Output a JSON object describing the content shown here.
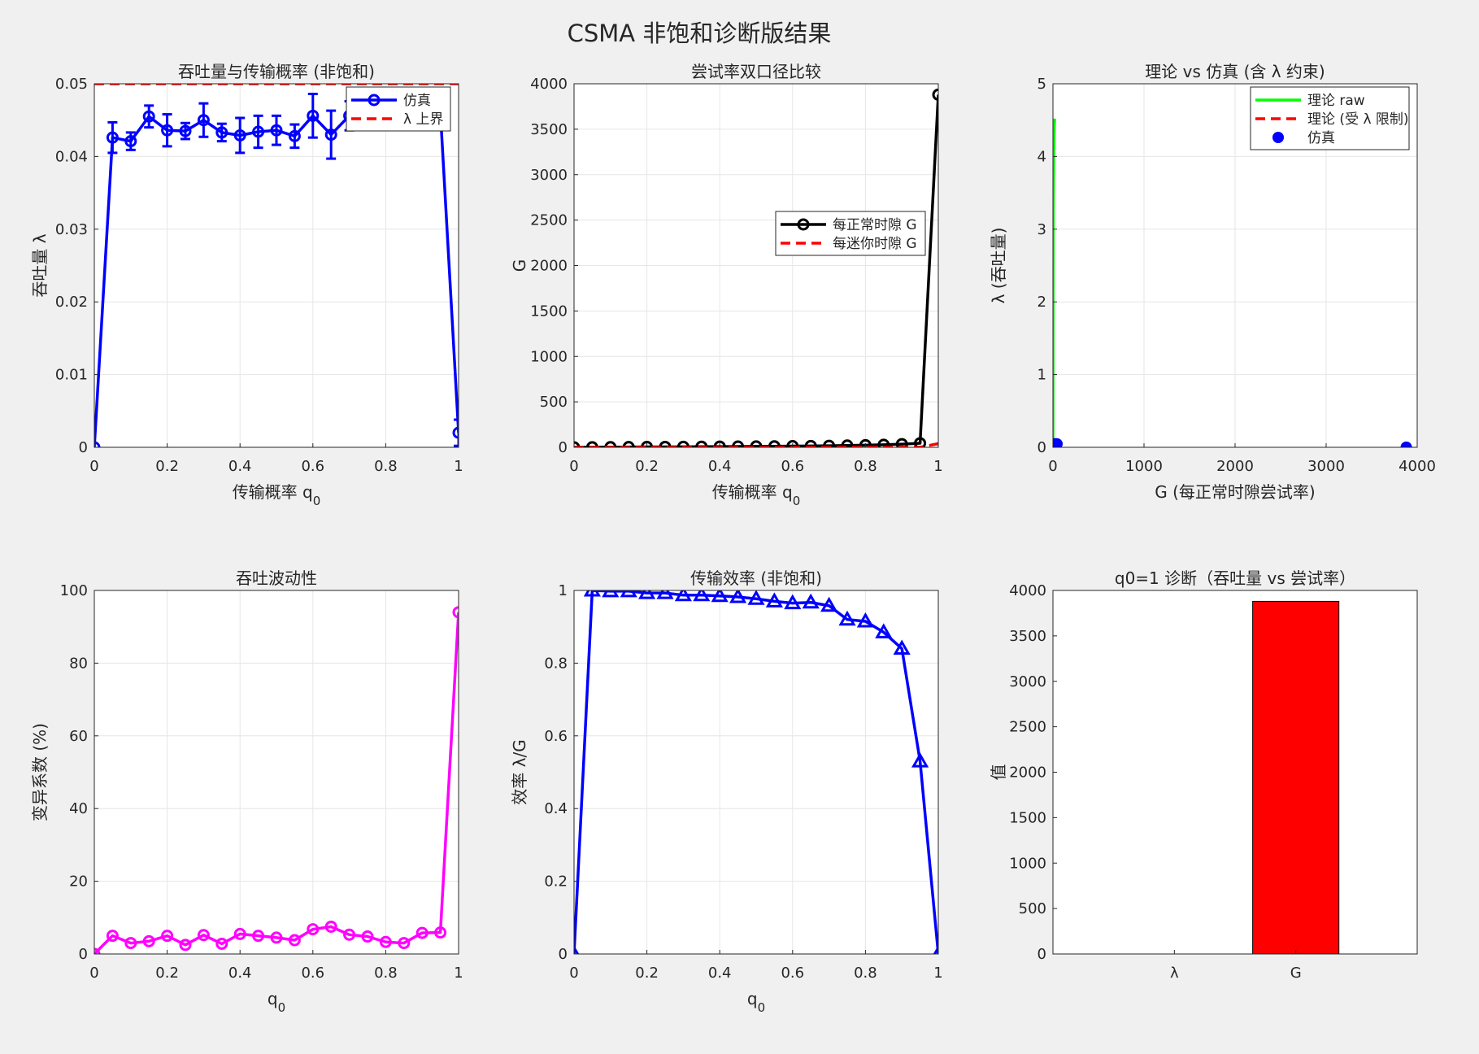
{
  "figure": {
    "title": "CSMA 非饱和诊断版结果",
    "background": "#f0f0f0",
    "axes_color": "#262626",
    "grid_color": "#e6e6e6"
  },
  "chart_data": [
    {
      "id": "throughput",
      "type": "line",
      "title": "吞吐量与传输概率 (非饱和)",
      "xlabel": "传输概率 q",
      "xlabel_sub": "0",
      "ylabel": "吞吐量 λ",
      "xlim": [
        0,
        1
      ],
      "ylim": [
        0,
        0.05
      ],
      "xticks": [
        0,
        0.2,
        0.4,
        0.6,
        0.8,
        1
      ],
      "xtick_labels": [
        "0",
        "0.2",
        "0.4",
        "0.6",
        "0.8",
        "1"
      ],
      "yticks": [
        0,
        0.01,
        0.02,
        0.03,
        0.04,
        0.05
      ],
      "ytick_labels": [
        "0",
        "0.01",
        "0.02",
        "0.03",
        "0.04",
        "0.05"
      ],
      "grid": true,
      "legend": "top-right",
      "series": [
        {
          "name": "仿真",
          "color": "#0000ff",
          "marker": "circle",
          "errorbars": true,
          "x": [
            0,
            0.05,
            0.1,
            0.15,
            0.2,
            0.25,
            0.3,
            0.35,
            0.4,
            0.45,
            0.5,
            0.55,
            0.6,
            0.65,
            0.7,
            0.75,
            0.8,
            0.85,
            0.9,
            0.95,
            1
          ],
          "y": [
            0,
            0.0426,
            0.0421,
            0.0455,
            0.0436,
            0.0435,
            0.045,
            0.0433,
            0.0429,
            0.0434,
            0.0436,
            0.0428,
            0.0456,
            0.043,
            0.0456,
            0.046,
            0.0462,
            0.0465,
            0.0466,
            0.0462,
            0.002
          ],
          "err": [
            0,
            0.0021,
            0.0012,
            0.0015,
            0.0022,
            0.0011,
            0.0023,
            0.0012,
            0.0024,
            0.0022,
            0.002,
            0.0016,
            0.003,
            0.0033,
            0.002,
            0.002,
            0.002,
            0.002,
            0.002,
            0.002,
            0.0018
          ]
        },
        {
          "name": "λ 上界",
          "color": "#ff0000",
          "dashed": true,
          "x": [
            0,
            1
          ],
          "y": [
            0.05,
            0.05
          ]
        }
      ]
    },
    {
      "id": "attempt-rate",
      "type": "line",
      "title": "尝试率双口径比较",
      "xlabel": "传输概率 q",
      "xlabel_sub": "0",
      "ylabel": "G",
      "xlim": [
        0,
        1
      ],
      "ylim": [
        0,
        4000
      ],
      "xticks": [
        0,
        0.2,
        0.4,
        0.6,
        0.8,
        1
      ],
      "xtick_labels": [
        "0",
        "0.2",
        "0.4",
        "0.6",
        "0.8",
        "1"
      ],
      "yticks": [
        0,
        500,
        1000,
        1500,
        2000,
        2500,
        3000,
        3500,
        4000
      ],
      "ytick_labels": [
        "0",
        "500",
        "1000",
        "1500",
        "2000",
        "2500",
        "3000",
        "3500",
        "4000"
      ],
      "grid": true,
      "legend": "center-right",
      "series": [
        {
          "name": "每正常时隙 G",
          "color": "#000000",
          "marker": "circle",
          "x": [
            0,
            0.05,
            0.1,
            0.15,
            0.2,
            0.25,
            0.3,
            0.35,
            0.4,
            0.45,
            0.5,
            0.55,
            0.6,
            0.65,
            0.7,
            0.75,
            0.8,
            0.85,
            0.9,
            0.95,
            1
          ],
          "y": [
            0,
            1,
            2,
            3,
            4,
            5,
            6,
            7,
            8,
            9,
            10,
            11,
            13,
            15,
            17,
            20,
            24,
            28,
            35,
            45,
            3880
          ]
        },
        {
          "name": "每迷你时隙 G",
          "color": "#ff0000",
          "dashed": true,
          "x": [
            0,
            0.05,
            0.1,
            0.15,
            0.2,
            0.25,
            0.3,
            0.35,
            0.4,
            0.45,
            0.5,
            0.55,
            0.6,
            0.65,
            0.7,
            0.75,
            0.8,
            0.85,
            0.9,
            0.95,
            1
          ],
          "y": [
            0,
            0.05,
            0.1,
            0.15,
            0.2,
            0.25,
            0.3,
            0.35,
            0.4,
            0.45,
            0.5,
            0.55,
            0.6,
            0.65,
            0.7,
            0.75,
            0.8,
            0.85,
            0.9,
            0.95,
            40
          ]
        }
      ]
    },
    {
      "id": "theory-vs-sim",
      "type": "line",
      "title": "理论 vs 仿真 (含 λ 约束)",
      "xlabel": "G (每正常时隙尝试率)",
      "ylabel": "λ (吞吐量)",
      "xlim": [
        0,
        4000
      ],
      "ylim": [
        0,
        5
      ],
      "xticks": [
        0,
        1000,
        2000,
        3000,
        4000
      ],
      "xtick_labels": [
        "0",
        "1000",
        "2000",
        "3000",
        "4000"
      ],
      "yticks": [
        0,
        1,
        2,
        3,
        4,
        5
      ],
      "ytick_labels": [
        "0",
        "1",
        "2",
        "3",
        "4",
        "5"
      ],
      "grid": true,
      "legend": "top-right",
      "series": [
        {
          "name": "理论 raw",
          "color": "#00ff00",
          "x": [
            0,
            1,
            2,
            4,
            8,
            12,
            16,
            20
          ],
          "y": [
            0,
            1.2,
            2.5,
            3.4,
            4.0,
            4.3,
            4.45,
            4.52
          ]
        },
        {
          "name": "理论 (受 λ 限制)",
          "color": "#ff0000",
          "dashed": true,
          "x": [
            0,
            20
          ],
          "y": [
            0,
            0.05
          ]
        },
        {
          "name": "仿真",
          "color": "#0000ff",
          "marker": "dot",
          "x": [
            0,
            1,
            2,
            3,
            4,
            5,
            6,
            8,
            10,
            13,
            17,
            20,
            24,
            28,
            35,
            45,
            3880
          ],
          "y": [
            0,
            0.043,
            0.042,
            0.045,
            0.044,
            0.044,
            0.045,
            0.043,
            0.043,
            0.044,
            0.044,
            0.046,
            0.046,
            0.047,
            0.047,
            0.046,
            0.002
          ]
        }
      ]
    },
    {
      "id": "fluctuation",
      "type": "line",
      "title": "吞吐波动性",
      "xlabel": "q",
      "xlabel_sub": "0",
      "ylabel": "变异系数 (%)",
      "xlim": [
        0,
        1
      ],
      "ylim": [
        0,
        100
      ],
      "xticks": [
        0,
        0.2,
        0.4,
        0.6,
        0.8,
        1
      ],
      "xtick_labels": [
        "0",
        "0.2",
        "0.4",
        "0.6",
        "0.8",
        "1"
      ],
      "yticks": [
        0,
        20,
        40,
        60,
        80,
        100
      ],
      "ytick_labels": [
        "0",
        "20",
        "40",
        "60",
        "80",
        "100"
      ],
      "grid": true,
      "series": [
        {
          "color": "#ff00ff",
          "marker": "circle",
          "x": [
            0,
            0.05,
            0.1,
            0.15,
            0.2,
            0.25,
            0.3,
            0.35,
            0.4,
            0.45,
            0.5,
            0.55,
            0.6,
            0.65,
            0.7,
            0.75,
            0.8,
            0.85,
            0.9,
            0.95,
            1
          ],
          "y": [
            0,
            5,
            3,
            3.5,
            5,
            2.5,
            5.2,
            2.8,
            5.5,
            5,
            4.5,
            3.8,
            6.8,
            7.5,
            5.3,
            4.8,
            3.3,
            3,
            5.8,
            5.9,
            94
          ]
        }
      ]
    },
    {
      "id": "efficiency",
      "type": "line",
      "title": "传输效率 (非饱和)",
      "xlabel": "q",
      "xlabel_sub": "0",
      "ylabel": "效率 λ/G",
      "xlim": [
        0,
        1
      ],
      "ylim": [
        0,
        1
      ],
      "xticks": [
        0,
        0.2,
        0.4,
        0.6,
        0.8,
        1
      ],
      "xtick_labels": [
        "0",
        "0.2",
        "0.4",
        "0.6",
        "0.8",
        "1"
      ],
      "yticks": [
        0,
        0.2,
        0.4,
        0.6,
        0.8,
        1
      ],
      "ytick_labels": [
        "0",
        "0.2",
        "0.4",
        "0.6",
        "0.8",
        "1"
      ],
      "grid": true,
      "series": [
        {
          "color": "#0000ff",
          "marker": "triangle",
          "x": [
            0,
            0.05,
            0.1,
            0.15,
            0.2,
            0.25,
            0.3,
            0.35,
            0.4,
            0.45,
            0.5,
            0.55,
            0.6,
            0.65,
            0.7,
            0.75,
            0.8,
            0.85,
            0.9,
            0.95,
            1
          ],
          "y": [
            0,
            1,
            0.998,
            0.998,
            0.993,
            0.993,
            0.987,
            0.987,
            0.985,
            0.982,
            0.977,
            0.97,
            0.965,
            0.967,
            0.958,
            0.92,
            0.915,
            0.885,
            0.84,
            0.53,
            0
          ]
        }
      ]
    },
    {
      "id": "q0-diagnosis",
      "type": "bar",
      "title": "q0=1 诊断（吞吐量 vs 尝试率）",
      "xlabel": "",
      "ylabel": "值",
      "categories": [
        "λ",
        "G"
      ],
      "values": [
        0.002,
        3880
      ],
      "bar_color": "#ff0000",
      "ylim": [
        0,
        4000
      ],
      "yticks": [
        0,
        500,
        1000,
        1500,
        2000,
        2500,
        3000,
        3500,
        4000
      ],
      "ytick_labels": [
        "0",
        "500",
        "1000",
        "1500",
        "2000",
        "2500",
        "3000",
        "3500",
        "4000"
      ],
      "grid": false
    }
  ]
}
